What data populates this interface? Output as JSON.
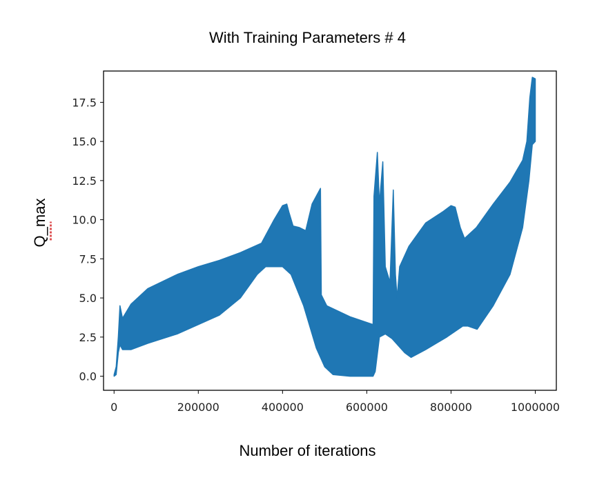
{
  "chart_data": {
    "type": "line",
    "title": "With Training Parameters # 4",
    "xlabel": "Number of iterations",
    "ylabel": "Q_max",
    "xlim": [
      -25000,
      1050000
    ],
    "ylim": [
      -0.9,
      19.5
    ],
    "xticks": [
      0,
      200000,
      400000,
      600000,
      800000,
      1000000
    ],
    "xtick_labels": [
      "0",
      "200000",
      "400000",
      "600000",
      "800000",
      "1000000"
    ],
    "yticks": [
      0,
      2.5,
      5,
      7.5,
      10,
      12.5,
      15,
      17.5
    ],
    "ytick_labels": [
      "0.0",
      "2.5",
      "5.0",
      "7.5",
      "10.0",
      "12.5",
      "15.0",
      "17.5"
    ],
    "grid": false,
    "series_color": "#1f77b4",
    "series": [
      {
        "upper_envelope": [
          [
            0,
            0.1
          ],
          [
            5000,
            0.6
          ],
          [
            10000,
            2.5
          ],
          [
            14000,
            4.5
          ],
          [
            20000,
            3.7
          ],
          [
            40000,
            4.6
          ],
          [
            80000,
            5.6
          ],
          [
            150000,
            6.5
          ],
          [
            200000,
            7
          ],
          [
            250000,
            7.4
          ],
          [
            300000,
            7.9
          ],
          [
            350000,
            8.5
          ],
          [
            380000,
            10
          ],
          [
            400000,
            10.9
          ],
          [
            410000,
            11
          ],
          [
            415000,
            10.5
          ],
          [
            425000,
            9.6
          ],
          [
            440000,
            9.5
          ],
          [
            455000,
            9.3
          ],
          [
            470000,
            11
          ],
          [
            490000,
            12
          ],
          [
            492000,
            5.2
          ],
          [
            505000,
            4.5
          ],
          [
            560000,
            3.8
          ],
          [
            615000,
            3.3
          ],
          [
            617000,
            11.5
          ],
          [
            625000,
            14.3
          ],
          [
            630000,
            11
          ],
          [
            638000,
            13.7
          ],
          [
            644000,
            7
          ],
          [
            655000,
            6
          ],
          [
            663000,
            11.9
          ],
          [
            668000,
            6.5
          ],
          [
            672000,
            5
          ],
          [
            678000,
            7
          ],
          [
            700000,
            8.3
          ],
          [
            740000,
            9.8
          ],
          [
            780000,
            10.5
          ],
          [
            800000,
            10.9
          ],
          [
            810000,
            10.8
          ],
          [
            822000,
            9.5
          ],
          [
            832000,
            8.8
          ],
          [
            860000,
            9.5
          ],
          [
            900000,
            11
          ],
          [
            940000,
            12.4
          ],
          [
            970000,
            13.8
          ],
          [
            980000,
            15
          ],
          [
            987000,
            17.8
          ],
          [
            993000,
            19.1
          ],
          [
            1000000,
            19
          ]
        ],
        "lower_envelope": [
          [
            0,
            0
          ],
          [
            5000,
            0.1
          ],
          [
            10000,
            1.5
          ],
          [
            14000,
            2
          ],
          [
            20000,
            1.7
          ],
          [
            40000,
            1.7
          ],
          [
            80000,
            2.1
          ],
          [
            150000,
            2.7
          ],
          [
            200000,
            3.3
          ],
          [
            250000,
            3.9
          ],
          [
            300000,
            5
          ],
          [
            340000,
            6.5
          ],
          [
            360000,
            7
          ],
          [
            400000,
            7
          ],
          [
            420000,
            6.5
          ],
          [
            450000,
            4.5
          ],
          [
            480000,
            1.8
          ],
          [
            500000,
            0.6
          ],
          [
            520000,
            0.1
          ],
          [
            560000,
            0
          ],
          [
            615000,
            0
          ],
          [
            620000,
            0.3
          ],
          [
            630000,
            2.5
          ],
          [
            644000,
            2.7
          ],
          [
            660000,
            2.4
          ],
          [
            690000,
            1.5
          ],
          [
            705000,
            1.2
          ],
          [
            740000,
            1.7
          ],
          [
            790000,
            2.5
          ],
          [
            828000,
            3.2
          ],
          [
            840000,
            3.2
          ],
          [
            862000,
            3
          ],
          [
            900000,
            4.5
          ],
          [
            940000,
            6.5
          ],
          [
            970000,
            9.5
          ],
          [
            985000,
            12.5
          ],
          [
            993000,
            14.8
          ],
          [
            1000000,
            15
          ]
        ]
      }
    ]
  }
}
